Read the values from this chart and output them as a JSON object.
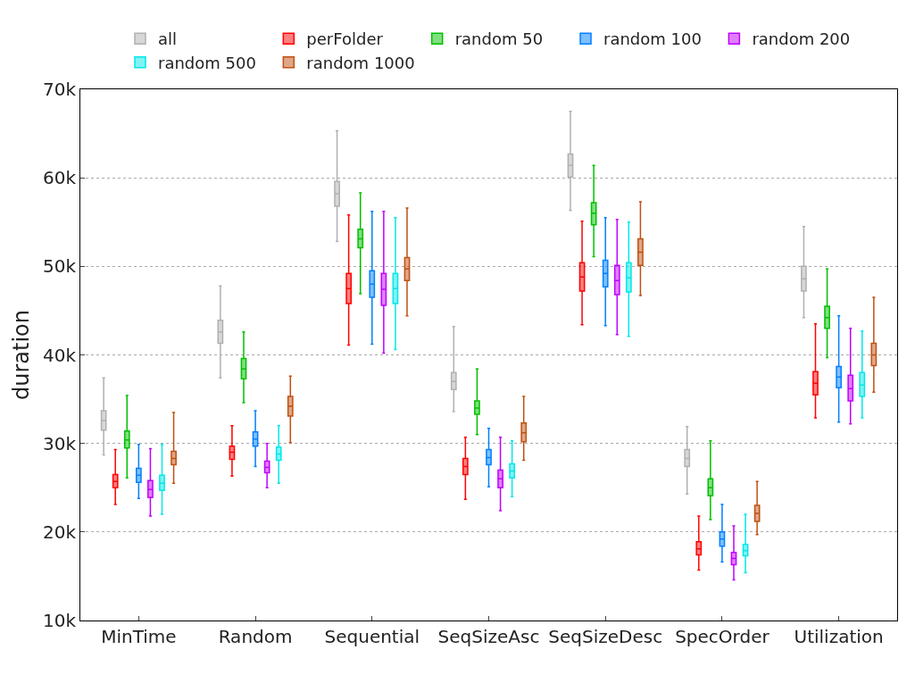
{
  "chart_data": {
    "type": "box",
    "ylabel": "duration",
    "categories": [
      "MinTime",
      "Random",
      "Sequential",
      "SeqSizeAsc",
      "SeqSizeDesc",
      "SpecOrder",
      "Utilization"
    ],
    "ylim": [
      10000,
      70000
    ],
    "yticks": [
      {
        "value": 10000,
        "label": "10k"
      },
      {
        "value": 20000,
        "label": "20k"
      },
      {
        "value": 30000,
        "label": "30k"
      },
      {
        "value": 40000,
        "label": "40k"
      },
      {
        "value": 50000,
        "label": "50k"
      },
      {
        "value": 60000,
        "label": "60k"
      },
      {
        "value": 70000,
        "label": "70k"
      }
    ],
    "grid": "y",
    "legend": "top",
    "series": [
      {
        "name": "all",
        "color": "#b0b0b0",
        "boxes": [
          {
            "low": 28700,
            "q1": 31500,
            "median": 32600,
            "q3": 33700,
            "high": 37400
          },
          {
            "low": 37400,
            "q1": 41300,
            "median": 42600,
            "q3": 43900,
            "high": 47800
          },
          {
            "low": 52800,
            "q1": 56800,
            "median": 58200,
            "q3": 59600,
            "high": 65300
          },
          {
            "low": 33600,
            "q1": 36100,
            "median": 37000,
            "q3": 38000,
            "high": 43200
          },
          {
            "low": 56300,
            "q1": 60100,
            "median": 61400,
            "q3": 62700,
            "high": 67500
          },
          {
            "low": 24300,
            "q1": 27400,
            "median": 28300,
            "q3": 29300,
            "high": 31900
          },
          {
            "low": 44200,
            "q1": 47200,
            "median": 48600,
            "q3": 50000,
            "high": 54500
          }
        ]
      },
      {
        "name": "perFolder",
        "color": "#ff0000",
        "boxes": [
          {
            "low": 23100,
            "q1": 25000,
            "median": 25700,
            "q3": 26500,
            "high": 29300
          },
          {
            "low": 26300,
            "q1": 28200,
            "median": 29000,
            "q3": 29700,
            "high": 32000
          },
          {
            "low": 41100,
            "q1": 45800,
            "median": 47500,
            "q3": 49200,
            "high": 55800
          },
          {
            "low": 23700,
            "q1": 26500,
            "median": 27400,
            "q3": 28300,
            "high": 30700
          },
          {
            "low": 43400,
            "q1": 47200,
            "median": 48800,
            "q3": 50400,
            "high": 55100
          },
          {
            "low": 15700,
            "q1": 17400,
            "median": 18100,
            "q3": 18900,
            "high": 21800
          },
          {
            "low": 32900,
            "q1": 35500,
            "median": 36800,
            "q3": 38100,
            "high": 43500
          }
        ]
      },
      {
        "name": "random 50",
        "color": "#00c000",
        "boxes": [
          {
            "low": 26100,
            "q1": 29500,
            "median": 30400,
            "q3": 31400,
            "high": 35400
          },
          {
            "low": 34600,
            "q1": 37300,
            "median": 38400,
            "q3": 39600,
            "high": 42600
          },
          {
            "low": 46900,
            "q1": 52100,
            "median": 53100,
            "q3": 54200,
            "high": 58300
          },
          {
            "low": 31000,
            "q1": 33300,
            "median": 34000,
            "q3": 34800,
            "high": 38400
          },
          {
            "low": 51100,
            "q1": 54700,
            "median": 56000,
            "q3": 57200,
            "high": 61400
          },
          {
            "low": 21400,
            "q1": 24100,
            "median": 25000,
            "q3": 26000,
            "high": 30300
          },
          {
            "low": 39700,
            "q1": 43000,
            "median": 44200,
            "q3": 45500,
            "high": 49700
          }
        ]
      },
      {
        "name": "random 100",
        "color": "#0080ff",
        "boxes": [
          {
            "low": 23800,
            "q1": 25600,
            "median": 26400,
            "q3": 27200,
            "high": 29900
          },
          {
            "low": 27400,
            "q1": 29700,
            "median": 30500,
            "q3": 31300,
            "high": 33700
          },
          {
            "low": 41200,
            "q1": 46500,
            "median": 48000,
            "q3": 49500,
            "high": 56200
          },
          {
            "low": 25100,
            "q1": 27600,
            "median": 28400,
            "q3": 29300,
            "high": 31700
          },
          {
            "low": 43300,
            "q1": 47700,
            "median": 49200,
            "q3": 50700,
            "high": 55500
          },
          {
            "low": 16600,
            "q1": 18400,
            "median": 19200,
            "q3": 20000,
            "high": 23100
          },
          {
            "low": 32400,
            "q1": 36300,
            "median": 37500,
            "q3": 38700,
            "high": 44400
          }
        ]
      },
      {
        "name": "random 200",
        "color": "#c000ff",
        "boxes": [
          {
            "low": 21800,
            "q1": 23900,
            "median": 24800,
            "q3": 25800,
            "high": 29400
          },
          {
            "low": 25000,
            "q1": 26700,
            "median": 27300,
            "q3": 28000,
            "high": 30000
          },
          {
            "low": 40200,
            "q1": 45600,
            "median": 47400,
            "q3": 49200,
            "high": 56200
          },
          {
            "low": 22400,
            "q1": 25000,
            "median": 26000,
            "q3": 27000,
            "high": 30700
          },
          {
            "low": 42300,
            "q1": 46800,
            "median": 48400,
            "q3": 50100,
            "high": 55300
          },
          {
            "low": 14600,
            "q1": 16300,
            "median": 17000,
            "q3": 17700,
            "high": 20700
          },
          {
            "low": 32200,
            "q1": 34800,
            "median": 36200,
            "q3": 37700,
            "high": 43000
          }
        ]
      },
      {
        "name": "random 500",
        "color": "#00e8e8",
        "boxes": [
          {
            "low": 22000,
            "q1": 24700,
            "median": 25500,
            "q3": 26400,
            "high": 29900
          },
          {
            "low": 25500,
            "q1": 28100,
            "median": 28800,
            "q3": 29600,
            "high": 32000
          },
          {
            "low": 40600,
            "q1": 45800,
            "median": 47500,
            "q3": 49200,
            "high": 55500
          },
          {
            "low": 24000,
            "q1": 26100,
            "median": 26900,
            "q3": 27700,
            "high": 30300
          },
          {
            "low": 42100,
            "q1": 47100,
            "median": 48700,
            "q3": 50400,
            "high": 55000
          },
          {
            "low": 15400,
            "q1": 17300,
            "median": 17900,
            "q3": 18600,
            "high": 22000
          },
          {
            "low": 32900,
            "q1": 35300,
            "median": 36600,
            "q3": 38000,
            "high": 42700
          }
        ]
      },
      {
        "name": "random 1000",
        "color": "#c05010",
        "boxes": [
          {
            "low": 25500,
            "q1": 27600,
            "median": 28300,
            "q3": 29100,
            "high": 33500
          },
          {
            "low": 30100,
            "q1": 33100,
            "median": 34200,
            "q3": 35300,
            "high": 37600
          },
          {
            "low": 44400,
            "q1": 48400,
            "median": 49700,
            "q3": 51000,
            "high": 56600
          },
          {
            "low": 28100,
            "q1": 30200,
            "median": 31200,
            "q3": 32300,
            "high": 35300
          },
          {
            "low": 46700,
            "q1": 50100,
            "median": 51600,
            "q3": 53100,
            "high": 57300
          },
          {
            "low": 19700,
            "q1": 21200,
            "median": 22100,
            "q3": 23000,
            "high": 25700
          },
          {
            "low": 35800,
            "q1": 38800,
            "median": 40000,
            "q3": 41300,
            "high": 46500
          }
        ]
      }
    ]
  }
}
